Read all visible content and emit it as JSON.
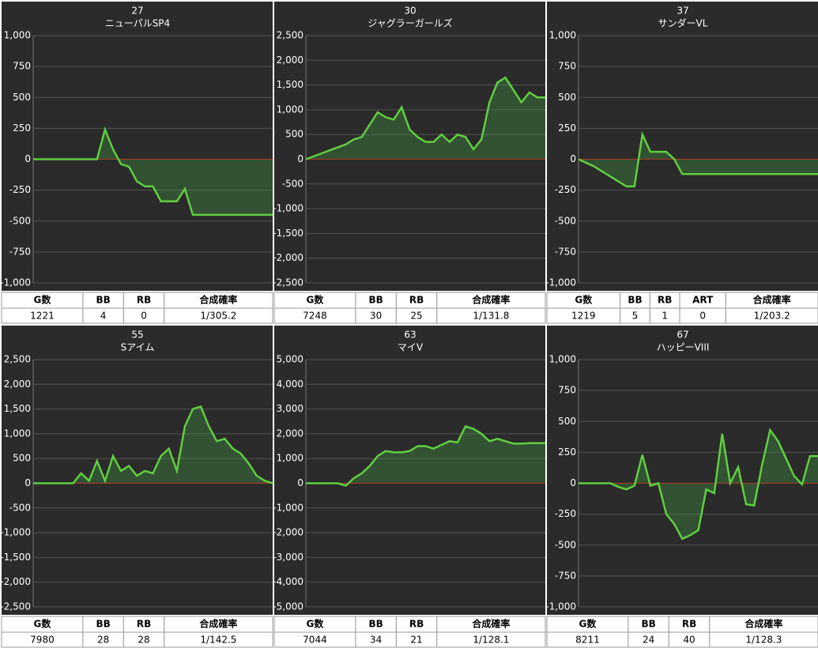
{
  "chart_data": [
    {
      "type": "line",
      "title": "27",
      "subtitle": "ニューパルSP4",
      "color": "#5fcf3f",
      "x": [
        0,
        1,
        2,
        3,
        4,
        5,
        6,
        7,
        8,
        9,
        10,
        11,
        12,
        13,
        14,
        15,
        16,
        17,
        18,
        19,
        20,
        21,
        22,
        23,
        24,
        25,
        26,
        27,
        28,
        29,
        30
      ],
      "values": [
        0,
        0,
        0,
        0,
        0,
        0,
        0,
        0,
        0,
        240,
        80,
        -40,
        -60,
        -180,
        -220,
        -220,
        -340,
        -340,
        -340,
        -240,
        -450,
        -450,
        -450,
        -450,
        -450,
        -450,
        -450,
        -450,
        -450,
        -450,
        -450
      ],
      "ylim": [
        -1000,
        1000
      ],
      "yticks": [
        {
          "value": -1000,
          "label": "-1,000"
        },
        -750,
        -500,
        -250,
        0,
        250,
        500,
        750,
        {
          "value": 1000,
          "label": "1,000"
        }
      ],
      "table": {
        "headers": [
          "G数",
          "BB",
          "RB",
          "合成確率"
        ],
        "rows": [
          [
            1221,
            4,
            0,
            "1/305.2"
          ]
        ]
      }
    },
    {
      "type": "line",
      "title": "30",
      "subtitle": "ジャグラーガールズ",
      "color": "#5fcf3f",
      "x": [
        0,
        1,
        2,
        3,
        4,
        5,
        6,
        7,
        8,
        9,
        10,
        11,
        12,
        13,
        14,
        15,
        16,
        17,
        18,
        19,
        20,
        21,
        22,
        23,
        24,
        25,
        26,
        27,
        28,
        29,
        30
      ],
      "values": [
        0,
        60,
        120,
        180,
        240,
        300,
        400,
        450,
        700,
        950,
        850,
        800,
        1050,
        600,
        450,
        350,
        350,
        500,
        350,
        500,
        450,
        200,
        400,
        1150,
        1550,
        1650,
        1400,
        1150,
        1350,
        1250,
        1250
      ],
      "ylim": [
        -2500,
        2500
      ],
      "yticks": [
        {
          "value": -2500,
          "label": "-2,500"
        },
        {
          "value": -2000,
          "label": "-2,000"
        },
        {
          "value": -1500,
          "label": "-1,500"
        },
        {
          "value": -1000,
          "label": "-1,000"
        },
        -500,
        0,
        500,
        {
          "value": 1000,
          "label": "1,000"
        },
        {
          "value": 1500,
          "label": "1,500"
        },
        {
          "value": 2000,
          "label": "2,000"
        },
        {
          "value": 2500,
          "label": "2,500"
        }
      ],
      "table": {
        "headers": [
          "G数",
          "BB",
          "RB",
          "合成確率"
        ],
        "rows": [
          [
            7248,
            30,
            25,
            "1/131.8"
          ]
        ]
      }
    },
    {
      "type": "line",
      "title": "37",
      "subtitle": "サンダーVL",
      "color": "#5fcf3f",
      "x": [
        0,
        1,
        2,
        3,
        4,
        5,
        6,
        7,
        8,
        9,
        10,
        11,
        12,
        13,
        14,
        15,
        16,
        17,
        18,
        19,
        20,
        21,
        22,
        23,
        24,
        25,
        26,
        27,
        28,
        29,
        30
      ],
      "values": [
        0,
        -30,
        -60,
        -100,
        -140,
        -180,
        -220,
        -220,
        200,
        60,
        60,
        60,
        0,
        -120,
        -120,
        -120,
        -120,
        -120,
        -120,
        -120,
        -120,
        -120,
        -120,
        -120,
        -120,
        -120,
        -120,
        -120,
        -120,
        -120,
        -120
      ],
      "ylim": [
        -1000,
        1000
      ],
      "yticks": [
        {
          "value": -1000,
          "label": "-1,000"
        },
        -750,
        -500,
        -250,
        0,
        250,
        500,
        750,
        {
          "value": 1000,
          "label": "1,000"
        }
      ],
      "table": {
        "headers": [
          "G数",
          "BB",
          "RB",
          "ART",
          "合成確率"
        ],
        "rows": [
          [
            1219,
            5,
            1,
            0,
            "1/203.2"
          ]
        ]
      }
    },
    {
      "type": "line",
      "title": "55",
      "subtitle": "Sアイム",
      "color": "#5fcf3f",
      "x": [
        0,
        1,
        2,
        3,
        4,
        5,
        6,
        7,
        8,
        9,
        10,
        11,
        12,
        13,
        14,
        15,
        16,
        17,
        18,
        19,
        20,
        21,
        22,
        23,
        24,
        25,
        26,
        27,
        28,
        29,
        30
      ],
      "values": [
        0,
        0,
        0,
        0,
        0,
        0,
        200,
        50,
        450,
        50,
        550,
        250,
        350,
        150,
        250,
        200,
        550,
        700,
        250,
        1150,
        1500,
        1550,
        1150,
        850,
        900,
        700,
        600,
        400,
        150,
        50,
        0
      ],
      "ylim": [
        -2500,
        2500
      ],
      "yticks": [
        {
          "value": -2500,
          "label": "-2,500"
        },
        {
          "value": -2000,
          "label": "-2,000"
        },
        {
          "value": -1500,
          "label": "-1,500"
        },
        {
          "value": -1000,
          "label": "-1,000"
        },
        -500,
        0,
        500,
        {
          "value": 1000,
          "label": "1,000"
        },
        {
          "value": 1500,
          "label": "1,500"
        },
        {
          "value": 2000,
          "label": "2,000"
        },
        {
          "value": 2500,
          "label": "2,500"
        }
      ],
      "table": {
        "headers": [
          "G数",
          "BB",
          "RB",
          "合成確率"
        ],
        "rows": [
          [
            7980,
            28,
            28,
            "1/142.5"
          ]
        ]
      }
    },
    {
      "type": "line",
      "title": "63",
      "subtitle": "マイV",
      "color": "#5fcf3f",
      "x": [
        0,
        1,
        2,
        3,
        4,
        5,
        6,
        7,
        8,
        9,
        10,
        11,
        12,
        13,
        14,
        15,
        16,
        17,
        18,
        19,
        20,
        21,
        22,
        23,
        24,
        25,
        26,
        27,
        28,
        29,
        30
      ],
      "values": [
        0,
        0,
        0,
        0,
        0,
        -100,
        200,
        400,
        700,
        1100,
        1300,
        1250,
        1250,
        1300,
        1500,
        1500,
        1400,
        1550,
        1700,
        1650,
        2300,
        2200,
        2000,
        1700,
        1800,
        1700,
        1600,
        1600,
        1620,
        1620,
        1620
      ],
      "ylim": [
        -5000,
        5000
      ],
      "yticks": [
        {
          "value": -5000,
          "label": "-5,000"
        },
        {
          "value": -4000,
          "label": "-4,000"
        },
        {
          "value": -3000,
          "label": "-3,000"
        },
        {
          "value": -2000,
          "label": "-2,000"
        },
        {
          "value": -1000,
          "label": "-1,000"
        },
        0,
        {
          "value": 1000,
          "label": "1,000"
        },
        {
          "value": 2000,
          "label": "2,000"
        },
        {
          "value": 3000,
          "label": "3,000"
        },
        {
          "value": 4000,
          "label": "4,000"
        },
        {
          "value": 5000,
          "label": "5,000"
        }
      ],
      "table": {
        "headers": [
          "G数",
          "BB",
          "RB",
          "合成確率"
        ],
        "rows": [
          [
            7044,
            34,
            21,
            "1/128.1"
          ]
        ]
      }
    },
    {
      "type": "line",
      "title": "67",
      "subtitle": "ハッピーVIII",
      "color": "#5fcf3f",
      "x": [
        0,
        1,
        2,
        3,
        4,
        5,
        6,
        7,
        8,
        9,
        10,
        11,
        12,
        13,
        14,
        15,
        16,
        17,
        18,
        19,
        20,
        21,
        22,
        23,
        24,
        25,
        26,
        27,
        28,
        29,
        30
      ],
      "values": [
        0,
        0,
        0,
        0,
        0,
        -30,
        -50,
        -20,
        230,
        -20,
        0,
        -250,
        -330,
        -450,
        -420,
        -380,
        -50,
        -80,
        400,
        0,
        130,
        -170,
        -180,
        150,
        430,
        340,
        200,
        60,
        -10,
        220,
        220
      ],
      "ylim": [
        -1000,
        1000
      ],
      "yticks": [
        {
          "value": -1000,
          "label": "-1,000"
        },
        -750,
        -500,
        -250,
        0,
        250,
        500,
        750,
        {
          "value": 1000,
          "label": "1,000"
        }
      ],
      "table": {
        "headers": [
          "G数",
          "BB",
          "RB",
          "合成確率"
        ],
        "rows": [
          [
            8211,
            24,
            40,
            "1/128.3"
          ]
        ]
      }
    }
  ]
}
